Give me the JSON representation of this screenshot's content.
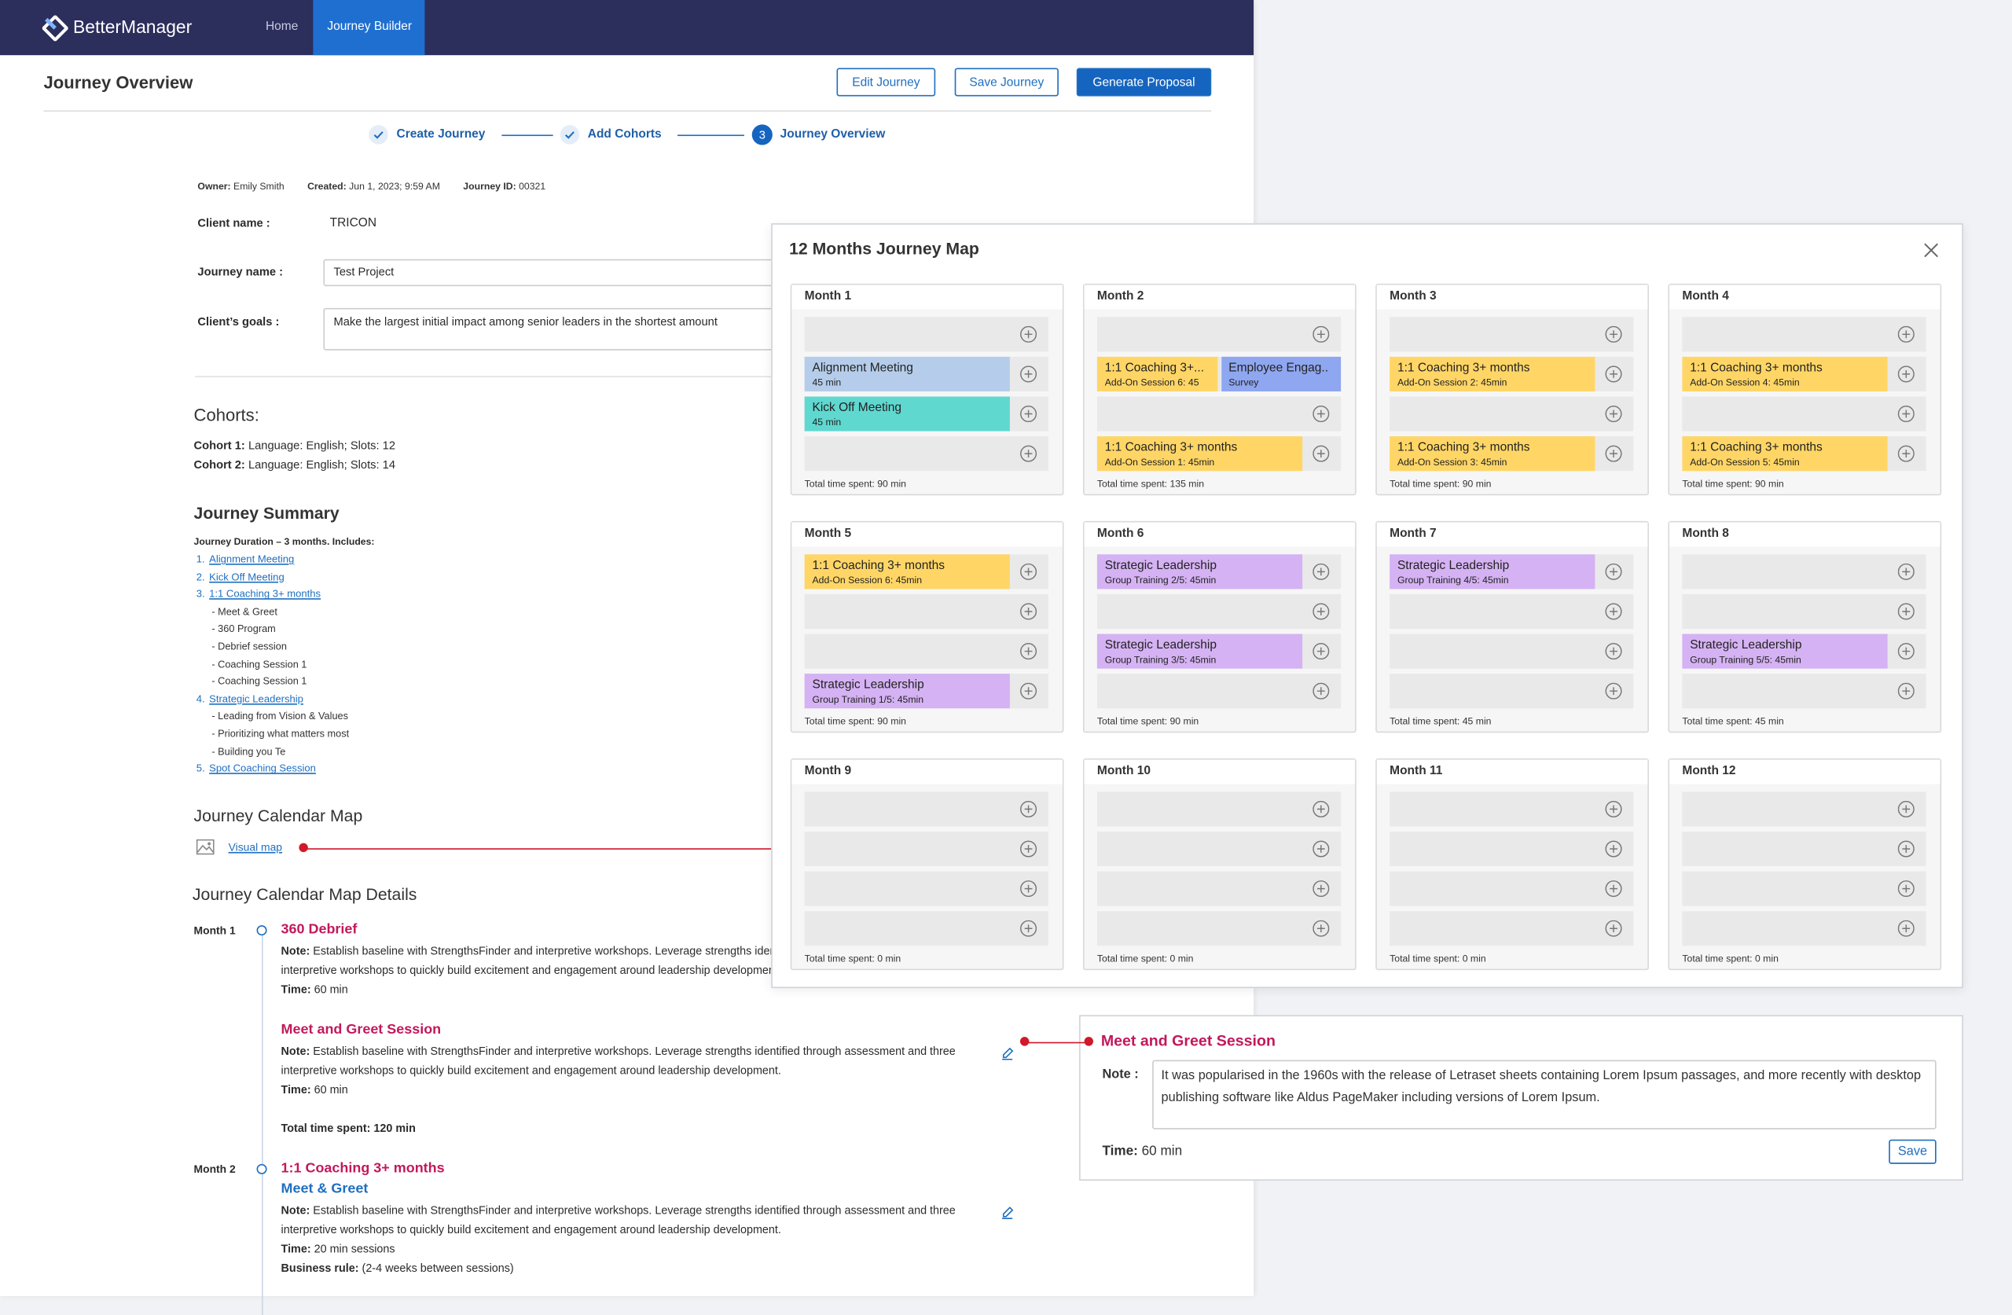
{
  "nav": {
    "brand": "BetterManager",
    "items": [
      "Home",
      "Journey Builder"
    ]
  },
  "header": {
    "title": "Journey Overview",
    "buttons": [
      "Edit Journey",
      "Save Journey",
      "Generate Proposal"
    ]
  },
  "steps": [
    {
      "label": "Create Journey"
    },
    {
      "label": "Add Cohorts"
    },
    {
      "number": "3",
      "label": "Journey Overview"
    }
  ],
  "meta": [
    {
      "label": "Owner:",
      "value": "Emily Smith"
    },
    {
      "label": "Created:",
      "value": "Jun 1, 2023; 9:59 AM"
    },
    {
      "label": "Journey ID:",
      "value": "00321"
    }
  ],
  "fields": [
    {
      "label": "Client name :",
      "value": "TRICON"
    },
    {
      "label": "Journey name :",
      "value": "Test Project"
    },
    {
      "label": "Client’s goals :",
      "value": "Make the largest initial impact among senior leaders in the shortest amount"
    }
  ],
  "cohorts": {
    "title": "Cohorts:",
    "items": [
      {
        "label": "Cohort 1:",
        "value": "Language: English; Slots: 12"
      },
      {
        "label": "Cohort 2:",
        "value": "Language: English; Slots: 14"
      }
    ]
  },
  "summary": {
    "title": "Journey Summary",
    "duration": "Journey Duration – 3 months. Includes:",
    "items": [
      {
        "number": "1.",
        "label": "Alignment Meeting"
      },
      {
        "number": "2.",
        "label": "Kick Off Meeting"
      },
      {
        "number": "3.",
        "label": "1:1 Coaching 3+ months",
        "subitems": [
          "- Meet & Greet",
          "- 360 Program",
          "- Debrief session",
          "- Coaching Session 1",
          "- Coaching Session 1"
        ]
      },
      {
        "number": "4.",
        "label": "Strategic Leadership",
        "subitems": [
          "- Leading from Vision & Values",
          "- Prioritizing what matters most",
          "- Building you Te"
        ]
      },
      {
        "number": "5.",
        "label": "Spot Coaching Session"
      }
    ]
  },
  "calendar_map": {
    "title": "Journey Calendar Map",
    "link": "Visual map"
  },
  "details": {
    "title": "Journey Calendar Map Details",
    "months": [
      {
        "label": "Month 1",
        "entries": [
          {
            "title": "360 Debrief",
            "note_label": "Note:",
            "note": "Establish baseline with StrengthsFinder and interpretive workshops. Leverage strengths identified through assessment and three interpretive workshops to quickly build excitement and engagement around leadership development.",
            "lines": [
              {
                "label": "Time:",
                "value": "60 min"
              }
            ]
          },
          {
            "title": "Meet and Greet Session",
            "note_label": "Note:",
            "note": "Establish baseline with StrengthsFinder and interpretive workshops. Leverage strengths identified through assessment and three interpretive workshops to quickly build excitement and engagement around leadership development.",
            "lines": [
              {
                "label": "Time:",
                "value": "60 min"
              }
            ]
          }
        ],
        "total": {
          "label": "Total time spent:",
          "value": "120 min"
        }
      },
      {
        "label": "Month 2",
        "entries": [
          {
            "title": "1:1 Coaching 3+ months",
            "subtitle": "Meet & Greet",
            "note_label": "Note:",
            "note": "Establish baseline with StrengthsFinder and interpretive workshops. Leverage strengths identified through assessment and three interpretive workshops to quickly build excitement and engagement around leadership development.",
            "lines": [
              {
                "label": "Time:",
                "value": "20 min sessions"
              },
              {
                "label": "Business rule:",
                "value": "(2-4 weeks between sessions)"
              }
            ]
          }
        ]
      }
    ]
  },
  "modal": {
    "title": "12 Months Journey Map",
    "months": [
      {
        "label": "Month 1",
        "rows": [
          [],
          [
            {
              "title": "Alignment Meeting",
              "sub": "45 min",
              "color": "#b5cdea"
            }
          ],
          [
            {
              "title": "Kick Off Meeting",
              "sub": "45 min",
              "color": "#5fd8d0"
            }
          ],
          []
        ],
        "total": "Total time spent: 90 min"
      },
      {
        "label": "Month 2",
        "rows": [
          [],
          [
            {
              "title": "1:1 Coaching 3+...",
              "sub": "Add-On Session 6: 45",
              "color": "#ffd666"
            },
            {
              "title": "Employee Engag..",
              "sub": "Survey",
              "color": "#8fa6f0"
            }
          ],
          [],
          [
            {
              "title": "1:1 Coaching 3+ months",
              "sub": "Add-On Session 1: 45min",
              "color": "#ffd666"
            }
          ]
        ],
        "total": "Total time spent: 135 min"
      },
      {
        "label": "Month 3",
        "rows": [
          [],
          [
            {
              "title": "1:1 Coaching 3+ months",
              "sub": "Add-On Session 2: 45min",
              "color": "#ffd666"
            }
          ],
          [],
          [
            {
              "title": "1:1 Coaching 3+ months",
              "sub": "Add-On Session 3: 45min",
              "color": "#ffd666"
            }
          ]
        ],
        "total": "Total time spent: 90 min"
      },
      {
        "label": "Month 4",
        "rows": [
          [],
          [
            {
              "title": "1:1 Coaching 3+ months",
              "sub": "Add-On Session 4: 45min",
              "color": "#ffd666"
            }
          ],
          [],
          [
            {
              "title": "1:1 Coaching 3+ months",
              "sub": "Add-On Session 5: 45min",
              "color": "#ffd666"
            }
          ]
        ],
        "total": "Total time spent: 90 min"
      },
      {
        "label": "Month 5",
        "rows": [
          [
            {
              "title": "1:1 Coaching 3+ months",
              "sub": "Add-On Session 6: 45min",
              "color": "#ffd666"
            }
          ],
          [],
          [],
          [
            {
              "title": "Strategic Leadership",
              "sub": "Group Training 1/5: 45min",
              "color": "#d5b2f3"
            }
          ]
        ],
        "total": "Total time spent: 90 min"
      },
      {
        "label": "Month 6",
        "rows": [
          [
            {
              "title": "Strategic Leadership",
              "sub": "Group Training 2/5: 45min",
              "color": "#d5b2f3"
            }
          ],
          [],
          [
            {
              "title": "Strategic Leadership",
              "sub": "Group Training 3/5: 45min",
              "color": "#d5b2f3"
            }
          ],
          []
        ],
        "total": "Total time spent: 90 min"
      },
      {
        "label": "Month 7",
        "rows": [
          [
            {
              "title": "Strategic Leadership",
              "sub": "Group Training 4/5: 45min",
              "color": "#d5b2f3"
            }
          ],
          [],
          [],
          []
        ],
        "total": "Total time spent: 45 min"
      },
      {
        "label": "Month 8",
        "rows": [
          [],
          [],
          [
            {
              "title": "Strategic Leadership",
              "sub": "Group Training 5/5: 45min",
              "color": "#d5b2f3"
            }
          ],
          []
        ],
        "total": "Total time spent: 45 min"
      },
      {
        "label": "Month 9",
        "rows": [
          [],
          [],
          [],
          []
        ],
        "total": "Total time spent: 0 min"
      },
      {
        "label": "Month 10",
        "rows": [
          [],
          [],
          [],
          []
        ],
        "total": "Total time spent: 0 min"
      },
      {
        "label": "Month 11",
        "rows": [
          [],
          [],
          [],
          []
        ],
        "total": "Total time spent: 0 min"
      },
      {
        "label": "Month 12",
        "rows": [
          [],
          [],
          [],
          []
        ],
        "total": "Total time spent: 0 min"
      }
    ]
  },
  "edit_panel": {
    "title": "Meet and Greet Session",
    "note_label": "Note :",
    "note": "It was popularised in the 1960s with the release of Letraset sheets containing Lorem Ipsum passages, and more recently with desktop publishing software like Aldus PageMaker including versions of Lorem Ipsum.",
    "time_label": "Time:",
    "time": "60 min",
    "button": "Save"
  }
}
